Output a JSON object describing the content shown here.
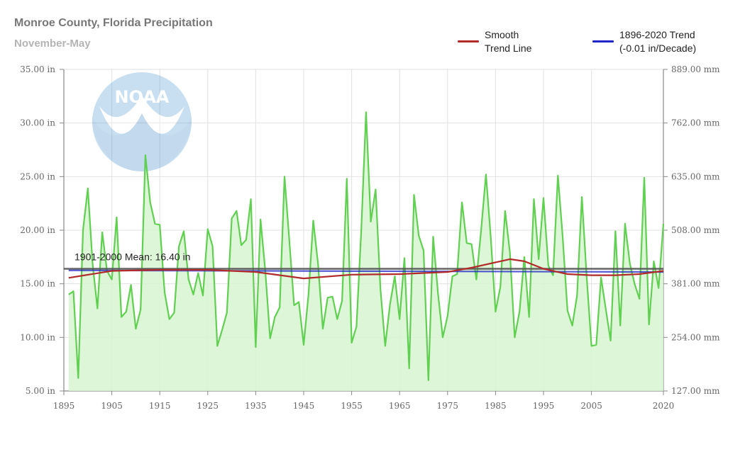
{
  "header": {
    "title": "Monroe County, Florida Precipitation",
    "subtitle": "November-May"
  },
  "legend": {
    "smooth_label": "Smooth\nTrend Line",
    "trend_label": "1896-2020 Trend\n(-0.01 in/Decade)"
  },
  "colors": {
    "precip_line": "#5fd04f",
    "precip_fill": "#d7f5d0",
    "smooth": "#b22a2a",
    "trend": "#1f24c4",
    "mean": "#555555",
    "grid": "#e2e2e2",
    "axis": "#888888"
  },
  "logo": {
    "text": "NOAA"
  },
  "chart_data": {
    "type": "line",
    "title": "Monroe County, Florida Precipitation",
    "subtitle": "November-May",
    "x": [
      1896,
      1897,
      1898,
      1899,
      1900,
      1901,
      1902,
      1903,
      1904,
      1905,
      1906,
      1907,
      1908,
      1909,
      1910,
      1911,
      1912,
      1913,
      1914,
      1915,
      1916,
      1917,
      1918,
      1919,
      1920,
      1921,
      1922,
      1923,
      1924,
      1925,
      1926,
      1927,
      1928,
      1929,
      1930,
      1931,
      1932,
      1933,
      1934,
      1935,
      1936,
      1937,
      1938,
      1939,
      1940,
      1941,
      1942,
      1943,
      1944,
      1945,
      1946,
      1947,
      1948,
      1949,
      1950,
      1951,
      1952,
      1953,
      1954,
      1955,
      1956,
      1957,
      1958,
      1959,
      1960,
      1961,
      1962,
      1963,
      1964,
      1965,
      1966,
      1967,
      1968,
      1969,
      1970,
      1971,
      1972,
      1973,
      1974,
      1975,
      1976,
      1977,
      1978,
      1979,
      1980,
      1981,
      1982,
      1983,
      1984,
      1985,
      1986,
      1987,
      1988,
      1989,
      1990,
      1991,
      1992,
      1993,
      1994,
      1995,
      1996,
      1997,
      1998,
      1999,
      2000,
      2001,
      2002,
      2003,
      2004,
      2005,
      2006,
      2007,
      2008,
      2009,
      2010,
      2011,
      2012,
      2013,
      2014,
      2015,
      2016,
      2017,
      2018,
      2019,
      2020
    ],
    "series": [
      {
        "name": "",
        "values": [
          14.0,
          14.3,
          6.2,
          20.0,
          23.9,
          16.8,
          12.7,
          19.8,
          16.2,
          15.4,
          21.2,
          11.9,
          12.4,
          14.9,
          10.8,
          12.6,
          27.0,
          22.6,
          20.6,
          20.5,
          14.2,
          11.7,
          12.3,
          18.5,
          19.9,
          15.4,
          14.0,
          16.0,
          13.9,
          20.1,
          18.5,
          9.2,
          10.7,
          12.3,
          21.1,
          21.8,
          18.6,
          19.1,
          22.9,
          9.1,
          21.0,
          16.2,
          9.9,
          11.9,
          12.8,
          25.0,
          19.1,
          13.0,
          13.3,
          9.3,
          14.0,
          20.9,
          16.8,
          10.8,
          13.7,
          13.8,
          11.7,
          13.4,
          24.8,
          9.5,
          11.0,
          19.9,
          31.0,
          20.8,
          23.8,
          14.5,
          9.2,
          13.1,
          15.7,
          11.7,
          17.4,
          7.1,
          23.3,
          19.5,
          18.1,
          6.0,
          19.4,
          14.1,
          10.0,
          12.0,
          15.7,
          15.9,
          22.6,
          18.8,
          18.7,
          15.4,
          20.0,
          25.2,
          19.4,
          12.4,
          14.7,
          21.8,
          17.9,
          10.0,
          12.4,
          17.5,
          11.9,
          22.9,
          17.3,
          23.0,
          16.7,
          15.8,
          25.1,
          19.4,
          12.5,
          11.1,
          13.9,
          23.1,
          15.7,
          9.2,
          9.3,
          15.6,
          12.6,
          9.7,
          19.9,
          11.1,
          20.6,
          16.9,
          15.0,
          13.6,
          24.9,
          11.2,
          17.1,
          14.6,
          20.6
        ]
      },
      {
        "name": "Smooth Trend Line",
        "points": [
          [
            1896,
            15.55
          ],
          [
            1905,
            16.2
          ],
          [
            1915,
            16.3
          ],
          [
            1925,
            16.3
          ],
          [
            1935,
            16.1
          ],
          [
            1945,
            15.5
          ],
          [
            1955,
            15.85
          ],
          [
            1965,
            15.9
          ],
          [
            1975,
            16.1
          ],
          [
            1980,
            16.5
          ],
          [
            1985,
            17.0
          ],
          [
            1988,
            17.3
          ],
          [
            1991,
            17.1
          ],
          [
            1995,
            16.4
          ],
          [
            2000,
            15.9
          ],
          [
            2005,
            15.8
          ],
          [
            2010,
            15.8
          ],
          [
            2015,
            15.9
          ],
          [
            2020,
            16.2
          ]
        ]
      },
      {
        "name": "1896-2020 Trend",
        "points": [
          [
            1896,
            16.25
          ],
          [
            2020,
            16.1
          ]
        ]
      }
    ],
    "mean": {
      "value": 16.4,
      "label": "1901-2000 Mean: 16.40 in"
    },
    "xlim": [
      1895,
      2020
    ],
    "ylim": [
      5,
      35
    ],
    "xticks": [
      1895,
      1905,
      1915,
      1925,
      1935,
      1945,
      1955,
      1965,
      1975,
      1985,
      1995,
      2005,
      2020
    ],
    "yticks": [
      5,
      10,
      15,
      20,
      25,
      30,
      35
    ],
    "ytick_labels_left": [
      "5.00 in",
      "10.00 in",
      "15.00 in",
      "20.00 in",
      "25.00 in",
      "30.00 in",
      "35.00 in"
    ],
    "ytick_labels_right": [
      "127.00 mm",
      "254.00 mm",
      "381.00 mm",
      "508.00 mm",
      "635.00 mm",
      "762.00 mm",
      "889.00 mm"
    ],
    "grid": true,
    "legend_position": "top-right"
  }
}
